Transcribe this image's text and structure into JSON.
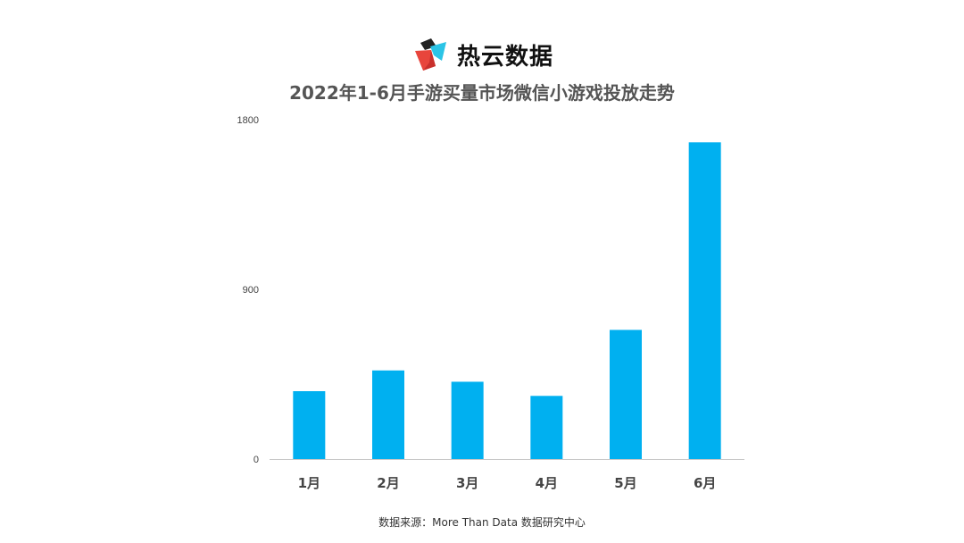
{
  "brand": {
    "name": "热云数据"
  },
  "colors": {
    "bar": "#00B0F0",
    "axis": "#C8C8C8",
    "tick_text": "#444444",
    "title": "#555555"
  },
  "chart_data": {
    "type": "bar",
    "title": "2022年1-6月手游买量市场微信小游戏投放走势",
    "xlabel": "",
    "ylabel": "",
    "categories": [
      "1月",
      "2月",
      "3月",
      "4月",
      "5月",
      "6月"
    ],
    "values": [
      360,
      470,
      410,
      335,
      685,
      1680
    ],
    "ylim": [
      0,
      1800
    ],
    "yticks": [
      "0",
      "900",
      "1800"
    ],
    "grid": false,
    "legend": "none"
  },
  "footer": {
    "source": "数据来源：More Than Data 数据研究中心"
  }
}
